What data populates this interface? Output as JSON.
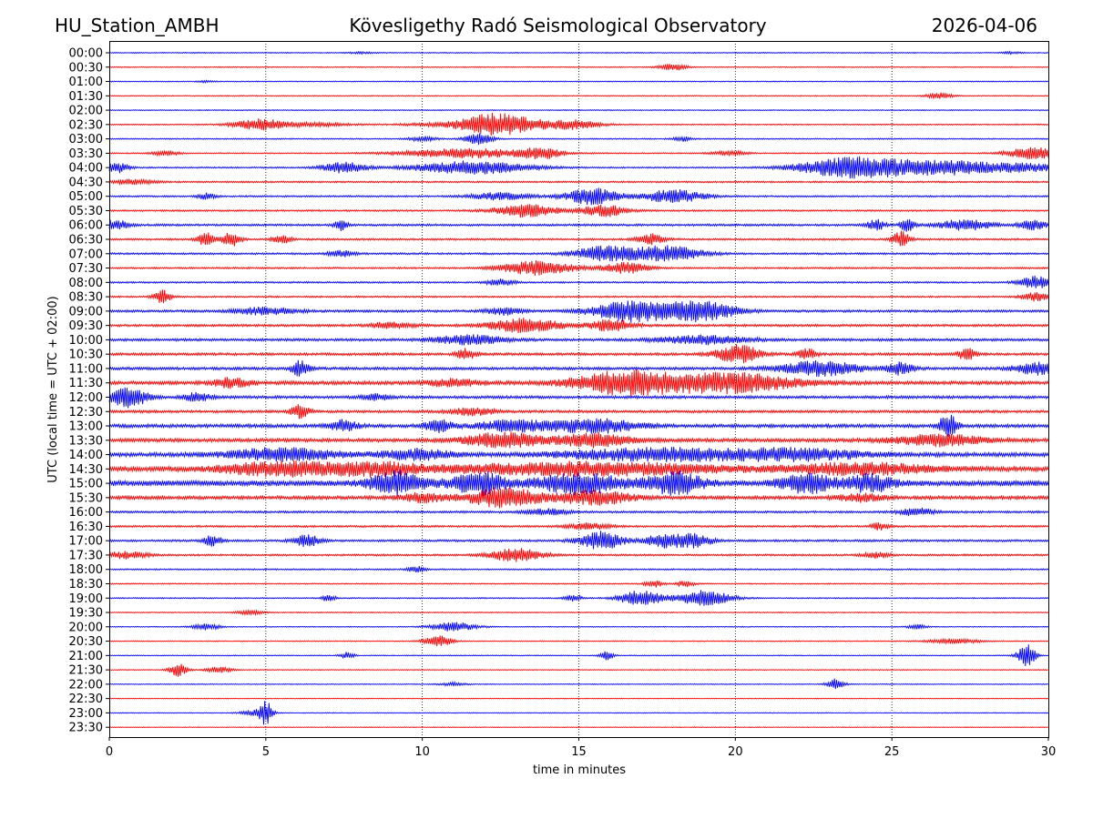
{
  "header": {
    "station": "HU_Station_AMBH",
    "observatory": "Kövesligethy Radó Seismological Observatory",
    "date": "2026-04-06"
  },
  "chart_data": {
    "type": "line",
    "title": "Kövesligethy Radó Seismological Observatory",
    "xlabel": "time in minutes",
    "ylabel": "UTC (local time = UTC + 02:00)",
    "xlim": [
      0,
      30
    ],
    "xticks": [
      0,
      5,
      10,
      15,
      20,
      25,
      30
    ],
    "vertical_grid": [
      5,
      10,
      15,
      20,
      25
    ],
    "grid": "dotted vertical lines",
    "trace_colors": [
      "#0000ff",
      "#ff0000"
    ],
    "rows": [
      {
        "label": "00:00",
        "noise": 0.08,
        "events": [
          [
            8.0,
            0.3,
            0.15
          ],
          [
            28.8,
            0.2,
            0.2
          ]
        ]
      },
      {
        "label": "00:30",
        "noise": 0.08,
        "events": [
          [
            18.0,
            0.3,
            0.6
          ]
        ]
      },
      {
        "label": "01:00",
        "noise": 0.08,
        "events": [
          [
            3.1,
            0.2,
            0.15
          ]
        ]
      },
      {
        "label": "01:30",
        "noise": 0.08,
        "events": [
          [
            26.5,
            0.3,
            0.5
          ]
        ]
      },
      {
        "label": "02:00",
        "noise": 0.08,
        "events": []
      },
      {
        "label": "02:30",
        "noise": 0.1,
        "events": [
          [
            4.8,
            0.6,
            0.9
          ],
          [
            6.5,
            0.8,
            0.3
          ],
          [
            11.5,
            1.2,
            0.5
          ],
          [
            12.2,
            0.6,
            1.3
          ],
          [
            13.2,
            0.6,
            0.8
          ],
          [
            14.8,
            0.6,
            0.8
          ]
        ]
      },
      {
        "label": "03:00",
        "noise": 0.1,
        "events": [
          [
            10.0,
            0.3,
            0.4
          ],
          [
            11.8,
            0.3,
            1.0
          ],
          [
            18.3,
            0.2,
            0.4
          ]
        ]
      },
      {
        "label": "03:30",
        "noise": 0.1,
        "events": [
          [
            1.8,
            0.3,
            0.4
          ],
          [
            11.5,
            1.5,
            0.8
          ],
          [
            13.8,
            0.4,
            0.9
          ],
          [
            19.8,
            0.4,
            0.4
          ],
          [
            29.5,
            0.6,
            1.0
          ]
        ]
      },
      {
        "label": "04:00",
        "noise": 0.12,
        "events": [
          [
            0.2,
            0.3,
            0.9
          ],
          [
            7.5,
            0.5,
            0.9
          ],
          [
            11.6,
            1.3,
            1.1
          ],
          [
            23.8,
            1.2,
            1.9
          ],
          [
            26.5,
            1.0,
            1.0
          ],
          [
            29.0,
            1.5,
            0.7
          ]
        ]
      },
      {
        "label": "04:30",
        "noise": 0.14,
        "events": [
          [
            0.8,
            0.5,
            0.4
          ]
        ]
      },
      {
        "label": "05:00",
        "noise": 0.14,
        "events": [
          [
            3.1,
            0.2,
            0.5
          ],
          [
            12.5,
            0.7,
            0.6
          ],
          [
            15.4,
            0.6,
            1.4
          ],
          [
            18.0,
            0.7,
            1.1
          ]
        ]
      },
      {
        "label": "05:30",
        "noise": 0.14,
        "events": [
          [
            13.3,
            0.7,
            1.1
          ],
          [
            15.8,
            0.5,
            1.0
          ]
        ]
      },
      {
        "label": "06:00",
        "noise": 0.18,
        "events": [
          [
            0.2,
            0.3,
            0.8
          ],
          [
            7.4,
            0.15,
            0.9
          ],
          [
            24.5,
            0.2,
            0.9
          ],
          [
            25.5,
            0.15,
            1.2
          ],
          [
            27.3,
            0.6,
            0.9
          ],
          [
            29.5,
            0.3,
            0.8
          ]
        ]
      },
      {
        "label": "06:30",
        "noise": 0.16,
        "events": [
          [
            3.1,
            0.2,
            1.1
          ],
          [
            3.9,
            0.2,
            1.2
          ],
          [
            5.5,
            0.2,
            0.8
          ],
          [
            17.3,
            0.3,
            0.9
          ],
          [
            25.3,
            0.2,
            1.3
          ]
        ]
      },
      {
        "label": "07:00",
        "noise": 0.16,
        "events": [
          [
            15.8,
            0.7,
            1.2
          ],
          [
            17.8,
            0.8,
            1.3
          ],
          [
            7.4,
            0.3,
            0.5
          ]
        ]
      },
      {
        "label": "07:30",
        "noise": 0.15,
        "events": [
          [
            13.7,
            0.8,
            1.2
          ],
          [
            16.5,
            0.5,
            0.9
          ]
        ]
      },
      {
        "label": "08:00",
        "noise": 0.14,
        "events": [
          [
            12.5,
            0.3,
            0.6
          ],
          [
            29.6,
            0.4,
            1.0
          ]
        ]
      },
      {
        "label": "08:30",
        "noise": 0.14,
        "events": [
          [
            1.7,
            0.2,
            1.1
          ],
          [
            29.6,
            0.3,
            0.7
          ]
        ]
      },
      {
        "label": "09:00",
        "noise": 0.2,
        "events": [
          [
            5.0,
            0.7,
            0.6
          ],
          [
            16.7,
            0.9,
            1.7
          ],
          [
            18.9,
            0.8,
            1.6
          ],
          [
            12.6,
            0.4,
            0.6
          ]
        ]
      },
      {
        "label": "09:30",
        "noise": 0.2,
        "events": [
          [
            13.3,
            0.8,
            1.2
          ],
          [
            16.0,
            0.5,
            1.0
          ],
          [
            9.0,
            0.5,
            0.5
          ]
        ]
      },
      {
        "label": "10:00",
        "noise": 0.22,
        "events": [
          [
            11.5,
            0.8,
            0.8
          ],
          [
            19.0,
            1.0,
            0.7
          ]
        ]
      },
      {
        "label": "10:30",
        "noise": 0.22,
        "events": [
          [
            11.4,
            0.2,
            0.9
          ],
          [
            20.1,
            0.5,
            1.5
          ],
          [
            22.3,
            0.2,
            1.0
          ],
          [
            27.4,
            0.2,
            1.0
          ]
        ]
      },
      {
        "label": "11:00",
        "noise": 0.24,
        "events": [
          [
            6.1,
            0.2,
            1.3
          ],
          [
            22.7,
            0.9,
            1.2
          ],
          [
            25.3,
            0.3,
            1.0
          ],
          [
            29.6,
            0.5,
            1.0
          ]
        ]
      },
      {
        "label": "11:30",
        "noise": 0.3,
        "events": [
          [
            16.5,
            1.2,
            1.9
          ],
          [
            19.8,
            1.5,
            1.6
          ],
          [
            3.9,
            0.4,
            0.8
          ],
          [
            11.0,
            0.6,
            0.6
          ]
        ]
      },
      {
        "label": "12:00",
        "noise": 0.24,
        "events": [
          [
            0.6,
            0.4,
            1.9
          ],
          [
            2.8,
            0.3,
            0.7
          ],
          [
            8.5,
            0.3,
            0.5
          ]
        ]
      },
      {
        "label": "12:30",
        "noise": 0.22,
        "events": [
          [
            6.1,
            0.2,
            1.2
          ],
          [
            11.6,
            0.5,
            0.6
          ]
        ]
      },
      {
        "label": "13:00",
        "noise": 0.3,
        "events": [
          [
            7.5,
            0.3,
            0.9
          ],
          [
            10.5,
            0.3,
            1.0
          ],
          [
            12.9,
            0.8,
            0.9
          ],
          [
            15.5,
            1.0,
            1.1
          ],
          [
            26.8,
            0.2,
            2.0
          ]
        ]
      },
      {
        "label": "13:30",
        "noise": 0.3,
        "events": [
          [
            12.6,
            0.9,
            1.2
          ],
          [
            15.5,
            0.8,
            1.1
          ],
          [
            26.5,
            1.0,
            0.9
          ]
        ]
      },
      {
        "label": "14:00",
        "noise": 0.35,
        "events": [
          [
            5.5,
            1.2,
            1.0
          ],
          [
            9.8,
            0.8,
            0.8
          ],
          [
            17.5,
            2.0,
            1.0
          ],
          [
            22.0,
            1.5,
            0.9
          ]
        ]
      },
      {
        "label": "14:30",
        "noise": 0.4,
        "events": [
          [
            5.5,
            1.3,
            1.1
          ],
          [
            8.5,
            1.0,
            0.9
          ],
          [
            15.2,
            3.0,
            1.0
          ],
          [
            24.0,
            1.5,
            0.9
          ]
        ]
      },
      {
        "label": "15:00",
        "noise": 0.45,
        "events": [
          [
            9.2,
            0.6,
            1.9
          ],
          [
            11.8,
            0.6,
            1.8
          ],
          [
            15.0,
            1.0,
            1.6
          ],
          [
            18.1,
            0.6,
            1.8
          ],
          [
            22.3,
            0.6,
            1.5
          ],
          [
            24.3,
            0.5,
            1.4
          ]
        ]
      },
      {
        "label": "15:30",
        "noise": 0.3,
        "events": [
          [
            12.6,
            0.8,
            1.6
          ],
          [
            15.5,
            0.8,
            1.2
          ],
          [
            10.0,
            0.5,
            0.7
          ],
          [
            24.0,
            0.5,
            0.6
          ]
        ]
      },
      {
        "label": "16:00",
        "noise": 0.18,
        "events": [
          [
            14.0,
            0.5,
            0.5
          ],
          [
            25.8,
            0.4,
            0.6
          ]
        ]
      },
      {
        "label": "16:30",
        "noise": 0.16,
        "events": [
          [
            15.3,
            0.5,
            0.5
          ],
          [
            24.6,
            0.2,
            0.6
          ]
        ]
      },
      {
        "label": "17:00",
        "noise": 0.18,
        "events": [
          [
            3.3,
            0.2,
            0.9
          ],
          [
            6.3,
            0.3,
            1.0
          ],
          [
            15.7,
            0.5,
            1.5
          ],
          [
            17.7,
            0.4,
            1.2
          ],
          [
            18.7,
            0.4,
            1.1
          ]
        ]
      },
      {
        "label": "17:30",
        "noise": 0.16,
        "events": [
          [
            0.5,
            0.5,
            0.6
          ],
          [
            13.0,
            0.6,
            1.1
          ],
          [
            24.5,
            0.3,
            0.5
          ]
        ]
      },
      {
        "label": "18:00",
        "noise": 0.12,
        "events": [
          [
            9.8,
            0.2,
            0.5
          ]
        ]
      },
      {
        "label": "18:30",
        "noise": 0.1,
        "events": [
          [
            17.4,
            0.2,
            0.6
          ],
          [
            18.4,
            0.2,
            0.5
          ]
        ]
      },
      {
        "label": "19:00",
        "noise": 0.1,
        "events": [
          [
            7.0,
            0.15,
            0.7
          ],
          [
            14.8,
            0.2,
            0.6
          ],
          [
            17.0,
            0.5,
            1.3
          ],
          [
            19.0,
            0.6,
            1.3
          ]
        ]
      },
      {
        "label": "19:30",
        "noise": 0.08,
        "events": [
          [
            4.5,
            0.3,
            0.4
          ]
        ]
      },
      {
        "label": "20:00",
        "noise": 0.08,
        "events": [
          [
            3.1,
            0.3,
            0.5
          ],
          [
            11.0,
            0.5,
            0.8
          ],
          [
            25.8,
            0.2,
            0.4
          ]
        ]
      },
      {
        "label": "20:30",
        "noise": 0.08,
        "events": [
          [
            10.5,
            0.3,
            1.0
          ],
          [
            27.0,
            0.6,
            0.4
          ]
        ]
      },
      {
        "label": "21:00",
        "noise": 0.08,
        "events": [
          [
            7.6,
            0.15,
            0.6
          ],
          [
            15.9,
            0.15,
            0.8
          ],
          [
            29.3,
            0.2,
            1.9
          ]
        ]
      },
      {
        "label": "21:30",
        "noise": 0.07,
        "events": [
          [
            2.2,
            0.2,
            1.1
          ],
          [
            3.5,
            0.3,
            0.5
          ]
        ]
      },
      {
        "label": "22:00",
        "noise": 0.07,
        "events": [
          [
            11.0,
            0.3,
            0.3
          ],
          [
            23.2,
            0.2,
            0.9
          ]
        ]
      },
      {
        "label": "22:30",
        "noise": 0.06,
        "events": []
      },
      {
        "label": "23:00",
        "noise": 0.07,
        "events": [
          [
            5.0,
            0.15,
            1.9
          ],
          [
            4.6,
            0.3,
            0.4
          ]
        ]
      },
      {
        "label": "23:30",
        "noise": 0.06,
        "events": []
      }
    ]
  }
}
